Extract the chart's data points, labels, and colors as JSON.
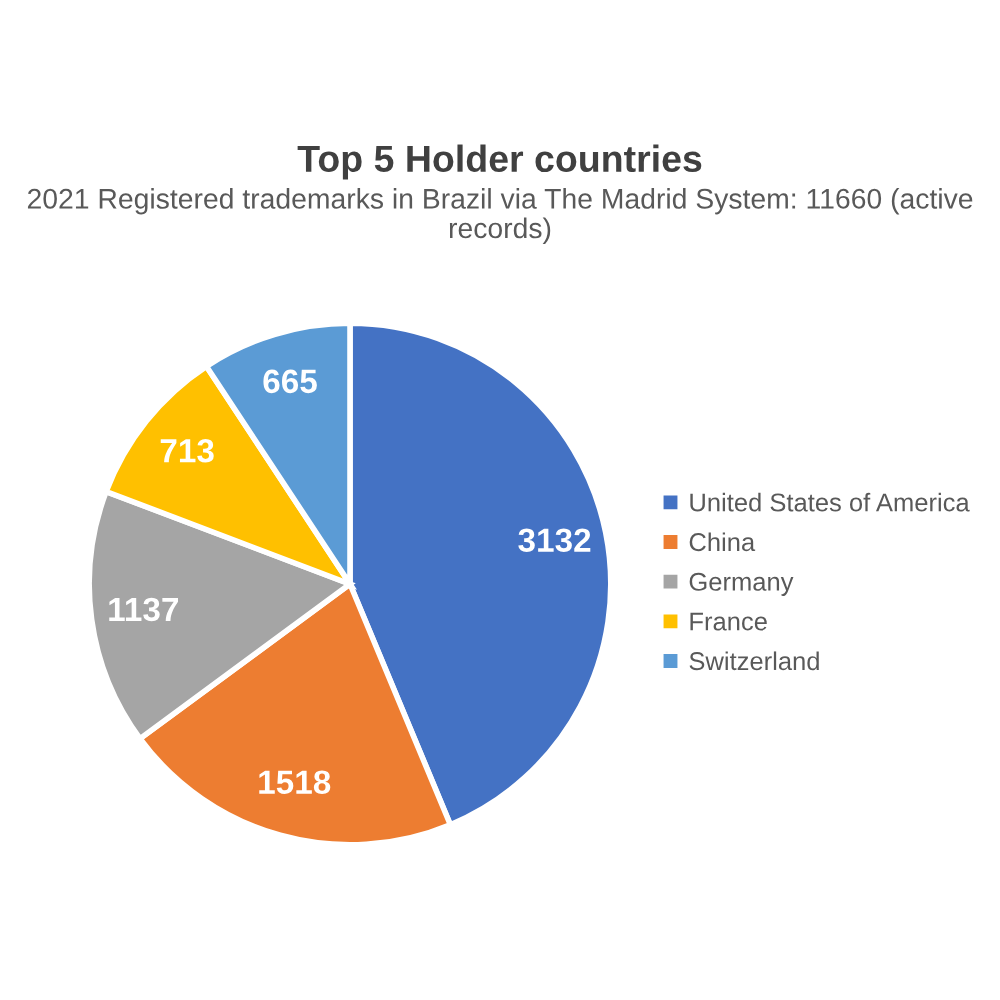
{
  "chart_data": {
    "type": "pie",
    "title": "Top 5 Holder countries",
    "subtitle": "2021 Registered trademarks in Brazil via The Madrid System: 11660 (active records)",
    "categories": [
      "United States of America",
      "China",
      "Germany",
      "France",
      "Switzerland"
    ],
    "values": [
      3132,
      1518,
      1137,
      713,
      665
    ],
    "colors": [
      "#4472c4",
      "#ed7d31",
      "#a5a5a5",
      "#ffc000",
      "#5b9bd5"
    ],
    "data_labels": true,
    "legend": "right"
  }
}
